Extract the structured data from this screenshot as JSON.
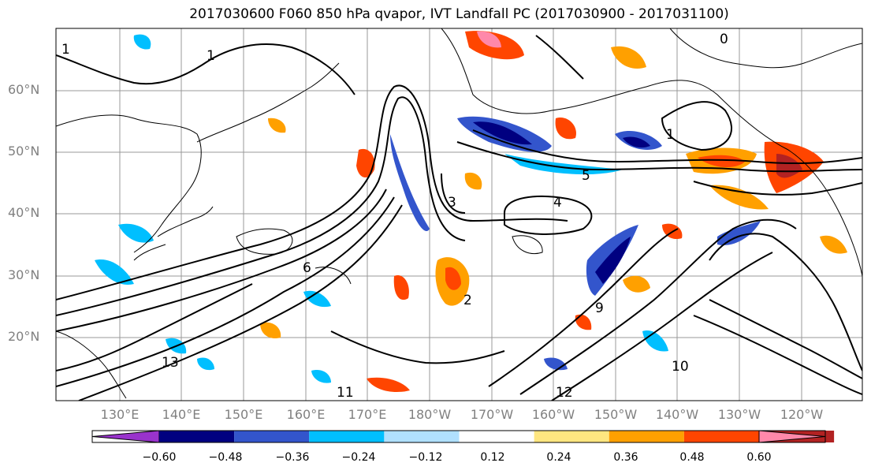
{
  "title": "2017030600 F060 850 hPa qvapor, IVT Landfall PC (2017030900 - 2017031100)",
  "lat_labels": [
    "60°N",
    "50°N",
    "40°N",
    "30°N",
    "20°N"
  ],
  "lon_labels": [
    "130°E",
    "140°E",
    "150°E",
    "160°E",
    "170°E",
    "180°W",
    "170°W",
    "160°W",
    "150°W",
    "140°W",
    "130°W",
    "120°W"
  ],
  "contour_labels": [
    "1",
    "1",
    "0",
    "1",
    "3",
    "4",
    "5",
    "6",
    "9",
    "10",
    "11",
    "12",
    "13",
    "2"
  ],
  "colorbar": {
    "ticks": [
      "−0.60",
      "−0.48",
      "−0.36",
      "−0.24",
      "−0.12",
      "0.12",
      "0.24",
      "0.36",
      "0.48",
      "0.60"
    ],
    "colors": [
      "#9933cc",
      "#000080",
      "#3355cc",
      "#00bfff",
      "#b0e0ff",
      "#ffffff",
      "#ffe680",
      "#ffa000",
      "#ff4500",
      "#b22222",
      "#ff88aa"
    ]
  }
}
